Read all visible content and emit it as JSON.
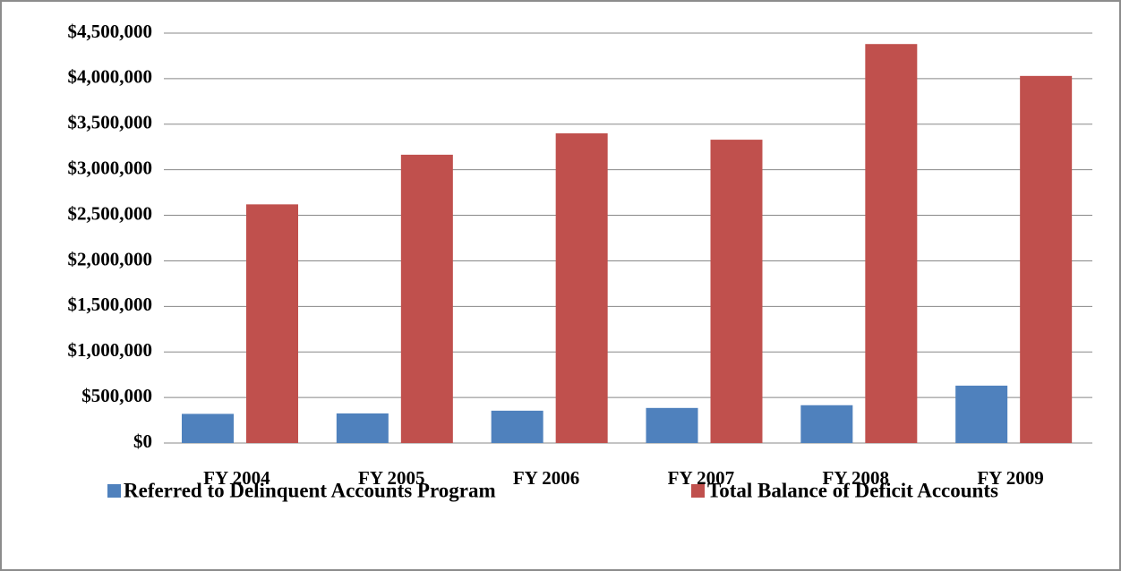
{
  "chart_data": {
    "type": "bar",
    "categories": [
      "FY 2004",
      "FY 2005",
      "FY 2006",
      "FY 2007",
      "FY 2008",
      "FY 2009"
    ],
    "series": [
      {
        "name": "Referred to Delinquent Accounts Program",
        "color": "#4f81bd",
        "values": [
          320000,
          325000,
          355000,
          385000,
          415000,
          630000
        ]
      },
      {
        "name": "Total Balance of Deficit Accounts",
        "color": "#c0504d",
        "values": [
          2620000,
          3165000,
          3400000,
          3330000,
          4380000,
          4030000
        ]
      }
    ],
    "ylim": [
      0,
      4500000
    ],
    "yticks": [
      {
        "value": 0,
        "label": "$0"
      },
      {
        "value": 500000,
        "label": "$500,000"
      },
      {
        "value": 1000000,
        "label": "$1,000,000"
      },
      {
        "value": 1500000,
        "label": "$1,500,000"
      },
      {
        "value": 2000000,
        "label": "$2,000,000"
      },
      {
        "value": 2500000,
        "label": "$2,500,000"
      },
      {
        "value": 3000000,
        "label": "$3,000,000"
      },
      {
        "value": 3500000,
        "label": "$3,500,000"
      },
      {
        "value": 4000000,
        "label": "$4,000,000"
      },
      {
        "value": 4500000,
        "label": "$4,500,000"
      }
    ],
    "grid": true,
    "legend": "bottom"
  }
}
